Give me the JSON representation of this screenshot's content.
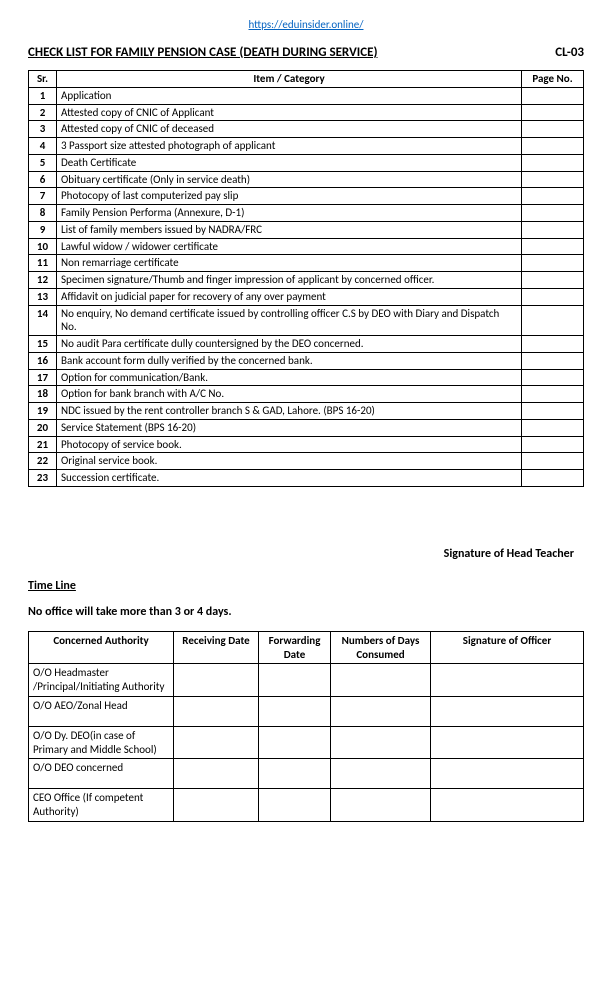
{
  "url": "https://eduinsider.online/",
  "title": "CHECK LIST FOR FAMILY PENSION CASE (DEATH DURING SERVICE)",
  "code": "CL-03",
  "checklist": {
    "headers": {
      "sr": "Sr.",
      "item": "Item / Category",
      "page": "Page No."
    },
    "rows": [
      {
        "sr": "1",
        "item": "Application"
      },
      {
        "sr": "2",
        "item": "Attested copy of CNIC of Applicant"
      },
      {
        "sr": "3",
        "item": "Attested copy of CNIC of deceased"
      },
      {
        "sr": "4",
        "item": "3 Passport size attested photograph of applicant"
      },
      {
        "sr": "5",
        "item": "Death Certificate"
      },
      {
        "sr": "6",
        "item": "Obituary certificate (Only in service death)"
      },
      {
        "sr": "7",
        "item": "Photocopy of last computerized pay slip"
      },
      {
        "sr": "8",
        "item": "Family Pension Performa (Annexure, D-1)"
      },
      {
        "sr": "9",
        "item": "List of family members issued by NADRA/FRC"
      },
      {
        "sr": "10",
        "item": "Lawful widow / widower certificate"
      },
      {
        "sr": "11",
        "item": "Non remarriage certificate"
      },
      {
        "sr": "12",
        "item": "Specimen signature/Thumb and finger impression of applicant by concerned officer."
      },
      {
        "sr": "13",
        "item": "Affidavit on judicial paper for recovery of any over payment"
      },
      {
        "sr": "14",
        "item": "No enquiry, No demand certificate issued by controlling officer C.S by DEO with Diary and Dispatch No."
      },
      {
        "sr": "15",
        "item": "No audit Para certificate dully countersigned by the DEO concerned."
      },
      {
        "sr": "16",
        "item": "Bank account form dully verified by the concerned bank."
      },
      {
        "sr": "17",
        "item": "Option for communication/Bank."
      },
      {
        "sr": "18",
        "item": "Option for bank branch with A/C No."
      },
      {
        "sr": "19",
        "item": "NDC issued by the rent controller branch S & GAD, Lahore. (BPS 16-20)"
      },
      {
        "sr": "20",
        "item": "Service Statement (BPS 16-20)"
      },
      {
        "sr": "21",
        "item": "Photocopy of service book."
      },
      {
        "sr": "22",
        "item": "Original service book."
      },
      {
        "sr": "23",
        "item": "Succession certificate."
      }
    ]
  },
  "signature_label": "Signature of Head Teacher",
  "timeline": {
    "heading": "Time Line",
    "note": "No office will take more than 3 or 4 days.",
    "headers": {
      "authority": "Concerned Authority",
      "receiving": "Receiving Date",
      "forwarding": "Forwarding Date",
      "days": "Numbers of Days Consumed",
      "sig": "Signature of Officer"
    },
    "rows": [
      "O/O Headmaster /Principal/Initiating Authority",
      "O/O AEO/Zonal Head",
      "O/O Dy. DEO(in case of Primary and Middle School)",
      "O/O DEO concerned",
      "CEO Office (If competent Authority)"
    ]
  }
}
